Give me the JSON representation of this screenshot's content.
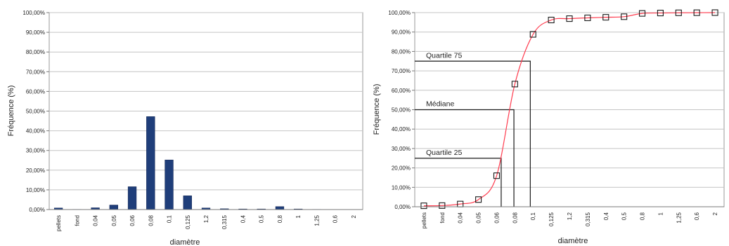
{
  "chart_data": [
    {
      "type": "bar",
      "categories": [
        "pellets",
        "fond",
        "0.04",
        "0.05",
        "0.06",
        "0.08",
        "0.1",
        "0.125",
        "1.2",
        "0.315",
        "0.4",
        "0.5",
        "0.8",
        "1",
        "1.25",
        "0.6",
        "2"
      ],
      "values": [
        0.8,
        0.1,
        0.9,
        2.3,
        11.6,
        47.2,
        25.2,
        7.0,
        0.8,
        0.4,
        0.3,
        0.3,
        1.5,
        0.3,
        0.1,
        0.05,
        0.05
      ],
      "ylim": [
        0,
        100
      ],
      "yticks": [
        "0,00%",
        "10,00%",
        "20,00%",
        "30,00%",
        "40,00%",
        "50,00%",
        "60,00%",
        "70,00%",
        "80,00%",
        "90,00%",
        "100,00%"
      ],
      "xlabel": "diamètre",
      "ylabel": "Fréquence (%)",
      "grid": true,
      "bar_color": "#1f3e7a"
    },
    {
      "type": "line",
      "categories": [
        "pellets",
        "fond",
        "0.04",
        "0.05",
        "0.06",
        "0.08",
        "0.1",
        "0.125",
        "1.2",
        "0.315",
        "0.4",
        "0.5",
        "0.8",
        "1",
        "1.25",
        "0.6",
        "2"
      ],
      "values": [
        0.5,
        0.6,
        1.4,
        3.7,
        16.0,
        63.2,
        88.8,
        96.2,
        96.9,
        97.3,
        97.6,
        97.9,
        99.6,
        99.8,
        99.9,
        99.95,
        100.0
      ],
      "ylim": [
        0,
        100
      ],
      "yticks": [
        "0,00%",
        "10,00%",
        "20,00%",
        "30,00%",
        "40,00%",
        "50,00%",
        "60,00%",
        "70,00%",
        "80,00%",
        "90,00%",
        "100,00%"
      ],
      "xlabel": "diamètre",
      "ylabel": "Fréquence (%)",
      "grid": true,
      "line_color": "#ff3b4e",
      "marker": "square",
      "quartiles": [
        {
          "label": "Quartile 75",
          "y": 75,
          "x_index": 5.85
        },
        {
          "label": "Médiane",
          "y": 50,
          "x_index": 4.95
        },
        {
          "label": "Quartile 25",
          "y": 25,
          "x_index": 4.25
        }
      ]
    }
  ]
}
